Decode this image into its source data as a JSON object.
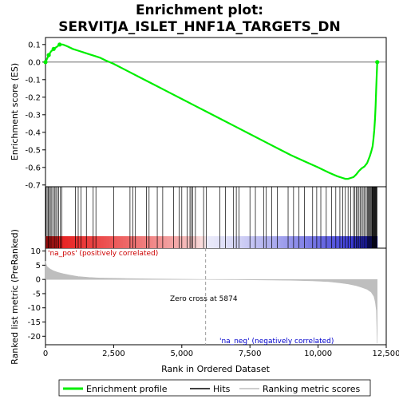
{
  "title_line1": "Enrichment plot:",
  "title_line2": "SERVITJA_ISLET_HNF1A_TARGETS_DN",
  "colors": {
    "enrichment": "#00ee00",
    "hits": "#000000",
    "metric": "#bebebe",
    "pos_label": "#cc0000",
    "neg_label": "#0000cc",
    "zero_cross": "#9a9a9a"
  },
  "chart_data": [
    {
      "type": "line",
      "panel": "enrichment",
      "ylabel": "Enrichment score (ES)",
      "xlim": [
        0,
        12500
      ],
      "ylim": [
        -0.71,
        0.14
      ],
      "yticks": [
        "0.1",
        "0.0",
        "-0.1",
        "-0.2",
        "-0.3",
        "-0.4",
        "-0.5",
        "-0.6",
        "-0.7"
      ],
      "ytick_values": [
        0.1,
        0.0,
        -0.1,
        -0.2,
        -0.3,
        -0.4,
        -0.5,
        -0.6,
        -0.7
      ],
      "series": [
        {
          "name": "Enrichment profile",
          "x": [
            0,
            60,
            120,
            200,
            300,
            400,
            480,
            560,
            640,
            800,
            1000,
            1200,
            1400,
            1600,
            1800,
            2000,
            2200,
            2500,
            3000,
            3500,
            4000,
            4500,
            5000,
            5500,
            5874,
            6500,
            7000,
            7500,
            8000,
            8500,
            9000,
            9500,
            10000,
            10400,
            10700,
            10900,
            11000,
            11100,
            11200,
            11300,
            11400,
            11500,
            11600,
            11700,
            11800,
            11850,
            11900,
            11950,
            12000,
            12030,
            12060,
            12090,
            12110,
            12130,
            12150,
            12170
          ],
          "y": [
            0.0,
            0.02,
            0.04,
            0.06,
            0.075,
            0.085,
            0.095,
            0.1,
            0.1,
            0.09,
            0.075,
            0.065,
            0.055,
            0.045,
            0.035,
            0.025,
            0.01,
            -0.01,
            -0.05,
            -0.09,
            -0.13,
            -0.17,
            -0.21,
            -0.25,
            -0.28,
            -0.33,
            -0.37,
            -0.41,
            -0.45,
            -0.49,
            -0.53,
            -0.565,
            -0.6,
            -0.63,
            -0.65,
            -0.66,
            -0.665,
            -0.665,
            -0.66,
            -0.655,
            -0.64,
            -0.62,
            -0.605,
            -0.595,
            -0.575,
            -0.555,
            -0.535,
            -0.51,
            -0.48,
            -0.44,
            -0.39,
            -0.32,
            -0.25,
            -0.16,
            -0.08,
            0.0
          ]
        }
      ],
      "markers": {
        "x": [
          0,
          120,
          300,
          520,
          12170
        ],
        "y": [
          0.0,
          0.04,
          0.075,
          0.1,
          0.0
        ]
      }
    },
    {
      "type": "scatter",
      "panel": "hits",
      "hits": [
        20,
        60,
        100,
        140,
        180,
        230,
        280,
        330,
        380,
        430,
        480,
        540,
        600,
        1100,
        1200,
        1300,
        1500,
        1750,
        1850,
        2500,
        3100,
        3200,
        3300,
        3700,
        3800,
        4100,
        4300,
        4700,
        4900,
        5000,
        5200,
        5300,
        5350,
        5400,
        5500,
        5800,
        5900,
        6400,
        6600,
        6900,
        7000,
        7100,
        7500,
        7700,
        8000,
        8100,
        8300,
        8500,
        8900,
        9100,
        9300,
        9500,
        9800,
        9950,
        10100,
        10300,
        10500,
        10650,
        10800,
        10900,
        11000,
        11100,
        11200,
        11300,
        11350,
        11400,
        11450,
        11500,
        11550,
        11600,
        11650,
        11700,
        11750,
        11800,
        11830,
        11860,
        11890,
        11920,
        11950,
        11980,
        12000,
        12020,
        12040,
        12060,
        12080,
        12100,
        12120,
        12140,
        12160
      ]
    },
    {
      "type": "area",
      "panel": "ranked_metric",
      "ylabel": "Ranked list metric (PreRanked)",
      "xlabel": "Rank in Ordered Dataset",
      "xlim": [
        0,
        12500
      ],
      "ylim": [
        -23,
        11
      ],
      "xticks": [
        "0",
        "2,500",
        "5,000",
        "7,500",
        "10,000",
        "12,500"
      ],
      "xtick_values": [
        0,
        2500,
        5000,
        7500,
        10000,
        12500
      ],
      "yticks": [
        "10",
        "5",
        "0",
        "-5",
        "-10",
        "-15",
        "-20"
      ],
      "ytick_values": [
        10,
        5,
        0,
        -5,
        -10,
        -15,
        -20
      ],
      "x": [
        0,
        20,
        60,
        120,
        200,
        300,
        450,
        650,
        900,
        1200,
        1600,
        2000,
        2500,
        3000,
        4000,
        5000,
        5874,
        7000,
        8000,
        9000,
        9800,
        10400,
        10800,
        11100,
        11400,
        11600,
        11800,
        11950,
        12050,
        12100,
        12140,
        12170
      ],
      "y": [
        6.5,
        5.5,
        4.5,
        4.0,
        3.5,
        3.0,
        2.5,
        2.0,
        1.5,
        1.0,
        0.7,
        0.5,
        0.4,
        0.3,
        0.15,
        0.05,
        0.0,
        -0.1,
        -0.2,
        -0.3,
        -0.5,
        -0.8,
        -1.2,
        -1.6,
        -2.2,
        -2.8,
        -3.5,
        -4.5,
        -6.0,
        -8.0,
        -11.0,
        -22.5
      ],
      "zero_cross": 5874,
      "zero_cross_text": "Zero cross at 5874",
      "pos_text": "'na_pos' (positively correlated)",
      "neg_text": "'na_neg' (negatively correlated)"
    }
  ],
  "legend": {
    "items": [
      {
        "label": "Enrichment profile"
      },
      {
        "label": "Hits"
      },
      {
        "label": "Ranking metric scores"
      }
    ]
  }
}
